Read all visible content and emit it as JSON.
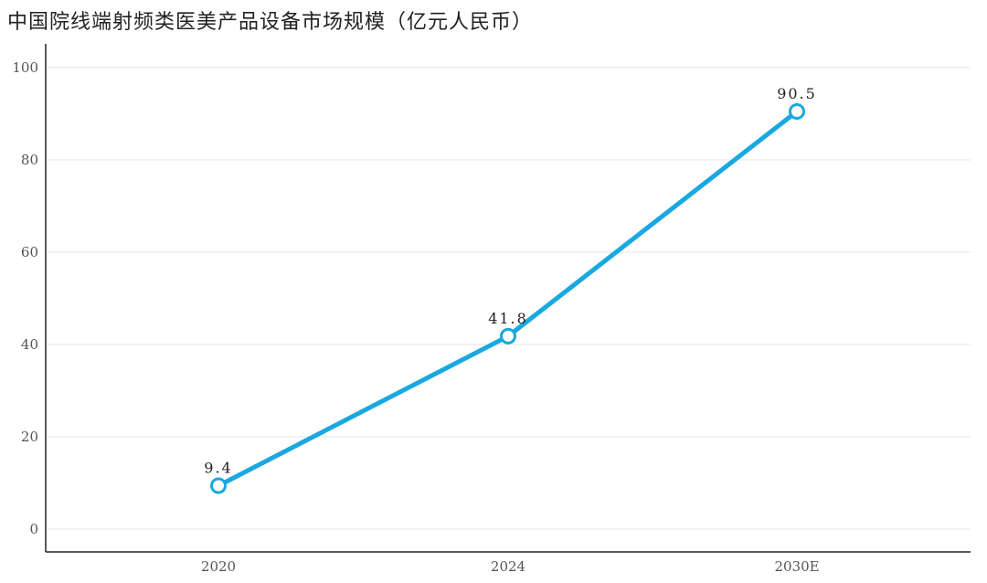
{
  "chart_data": {
    "type": "line",
    "title": "中国院线端射频类医美产品设备市场规模（亿元人民币）",
    "categories": [
      "2020",
      "2024",
      "2030E"
    ],
    "series": [
      {
        "values": [
          9.4,
          41.8,
          90.5
        ],
        "data_labels": [
          "9.4",
          "41.8",
          "90.5"
        ],
        "color": "#19a8e0"
      }
    ],
    "ylim": [
      0,
      100
    ],
    "yticks": [
      0,
      20,
      40,
      60,
      80,
      100
    ],
    "xlabel": "",
    "ylabel": "",
    "grid": true,
    "legend": "none"
  }
}
